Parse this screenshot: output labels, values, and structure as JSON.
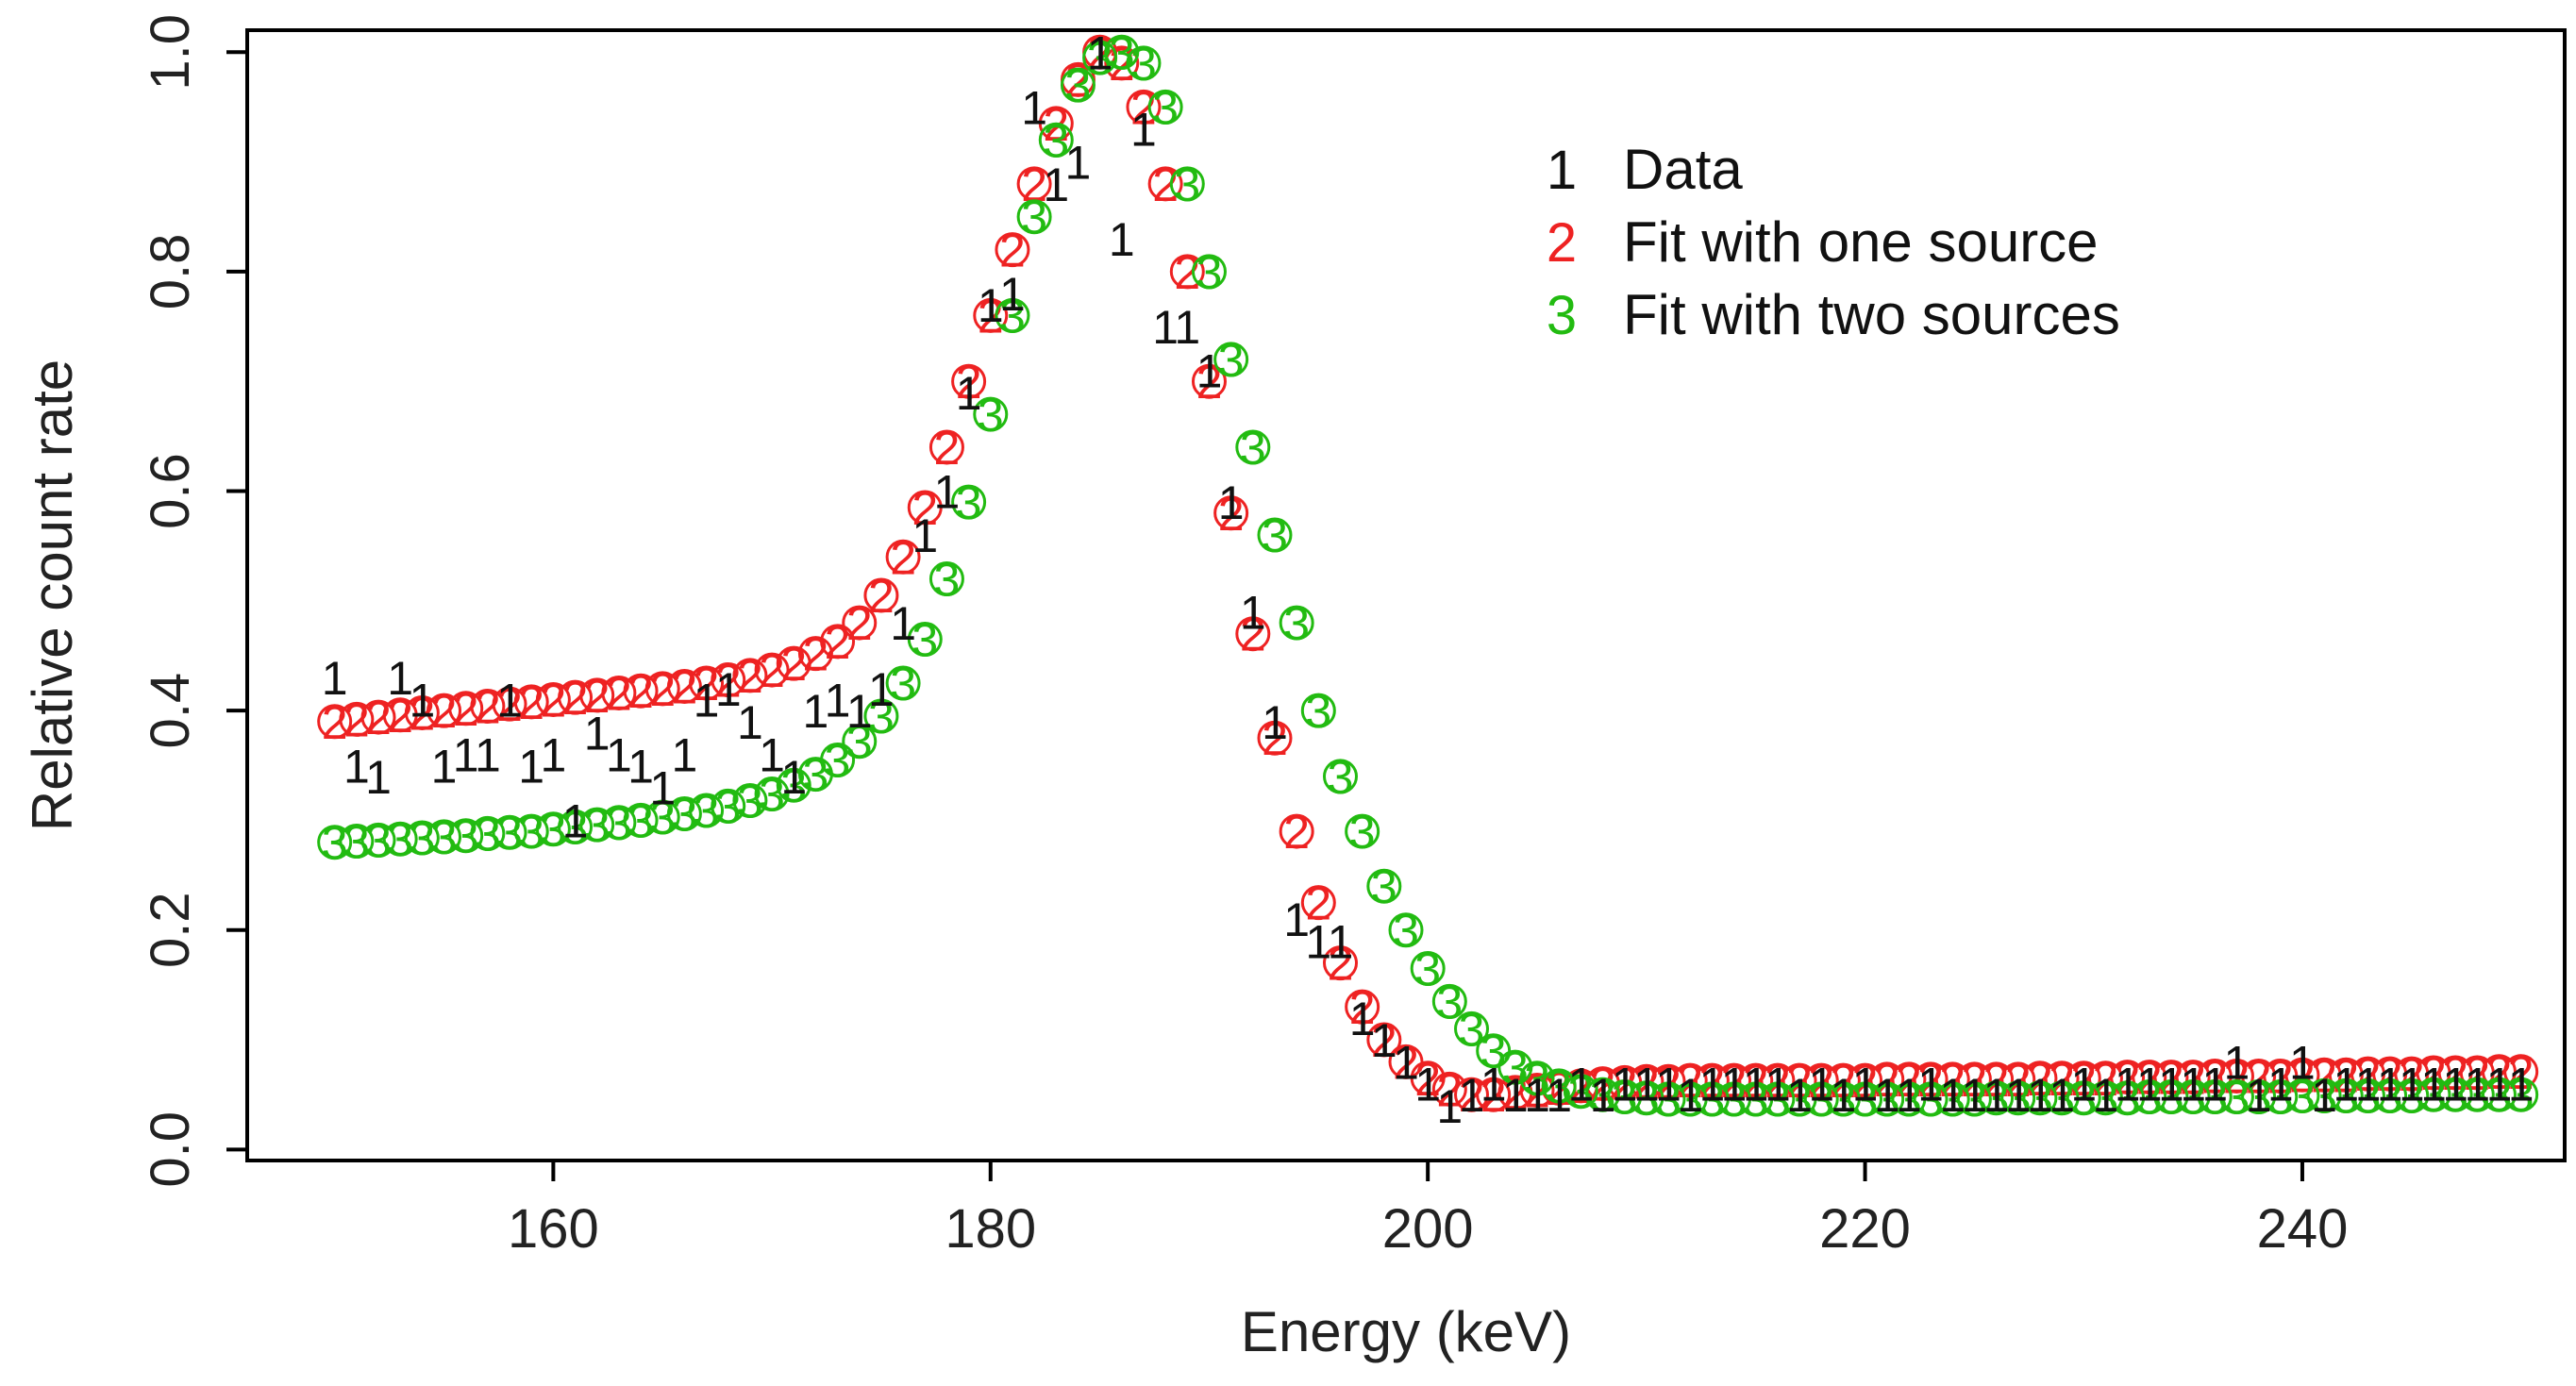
{
  "chart_data": {
    "type": "scatter",
    "title": "",
    "xlabel": "Energy (keV)",
    "ylabel": "Relative count rate",
    "xlim": [
      146,
      252
    ],
    "ylim": [
      -0.01,
      1.02
    ],
    "xticks": [
      "160",
      "180",
      "200",
      "220",
      "240"
    ],
    "yticks": [
      "0.0",
      "0.2",
      "0.4",
      "0.6",
      "0.8",
      "1.0"
    ],
    "grid": false,
    "legend_position": "top-right",
    "series": [
      {
        "name": "Data",
        "symbol": "1",
        "color": "#111111",
        "marker": "digit",
        "points": [
          [
            150.0,
            0.43
          ],
          [
            151.0,
            0.35
          ],
          [
            152.0,
            0.34
          ],
          [
            153.0,
            0.43
          ],
          [
            154.0,
            0.41
          ],
          [
            155.0,
            0.35
          ],
          [
            156.0,
            0.36
          ],
          [
            157.0,
            0.36
          ],
          [
            158.0,
            0.41
          ],
          [
            159.0,
            0.35
          ],
          [
            160.0,
            0.36
          ],
          [
            161.0,
            0.3
          ],
          [
            162.0,
            0.38
          ],
          [
            163.0,
            0.36
          ],
          [
            164.0,
            0.35
          ],
          [
            165.0,
            0.33
          ],
          [
            166.0,
            0.36
          ],
          [
            167.0,
            0.41
          ],
          [
            168.0,
            0.42
          ],
          [
            169.0,
            0.39
          ],
          [
            170.0,
            0.36
          ],
          [
            171.0,
            0.34
          ],
          [
            172.0,
            0.4
          ],
          [
            173.0,
            0.41
          ],
          [
            174.0,
            0.4
          ],
          [
            175.0,
            0.42
          ],
          [
            176.0,
            0.48
          ],
          [
            177.0,
            0.56
          ],
          [
            178.0,
            0.6
          ],
          [
            179.0,
            0.69
          ],
          [
            180.0,
            0.77
          ],
          [
            181.0,
            0.78
          ],
          [
            182.0,
            0.95
          ],
          [
            183.0,
            0.88
          ],
          [
            184.0,
            0.9
          ],
          [
            185.0,
            1.0
          ],
          [
            186.0,
            0.83
          ],
          [
            187.0,
            0.93
          ],
          [
            188.0,
            0.75
          ],
          [
            189.0,
            0.75
          ],
          [
            190.0,
            0.71
          ],
          [
            191.0,
            0.59
          ],
          [
            192.0,
            0.49
          ],
          [
            193.0,
            0.39
          ],
          [
            194.0,
            0.21
          ],
          [
            195.0,
            0.19
          ],
          [
            196.0,
            0.19
          ],
          [
            197.0,
            0.12
          ],
          [
            198.0,
            0.1
          ],
          [
            199.0,
            0.08
          ],
          [
            200.0,
            0.06
          ],
          [
            201.0,
            0.04
          ],
          [
            202.0,
            0.05
          ],
          [
            203.0,
            0.06
          ],
          [
            204.0,
            0.05
          ],
          [
            205.0,
            0.05
          ],
          [
            206.0,
            0.05
          ],
          [
            207.0,
            0.06
          ],
          [
            208.0,
            0.05
          ],
          [
            209.0,
            0.06
          ],
          [
            210.0,
            0.06
          ],
          [
            211.0,
            0.06
          ],
          [
            212.0,
            0.05
          ],
          [
            213.0,
            0.06
          ],
          [
            214.0,
            0.06
          ],
          [
            215.0,
            0.06
          ],
          [
            216.0,
            0.06
          ],
          [
            217.0,
            0.05
          ],
          [
            218.0,
            0.06
          ],
          [
            219.0,
            0.05
          ],
          [
            220.0,
            0.06
          ],
          [
            221.0,
            0.05
          ],
          [
            222.0,
            0.05
          ],
          [
            223.0,
            0.06
          ],
          [
            224.0,
            0.05
          ],
          [
            225.0,
            0.05
          ],
          [
            226.0,
            0.05
          ],
          [
            227.0,
            0.05
          ],
          [
            228.0,
            0.05
          ],
          [
            229.0,
            0.05
          ],
          [
            230.0,
            0.06
          ],
          [
            231.0,
            0.05
          ],
          [
            232.0,
            0.06
          ],
          [
            233.0,
            0.06
          ],
          [
            234.0,
            0.06
          ],
          [
            235.0,
            0.06
          ],
          [
            236.0,
            0.06
          ],
          [
            237.0,
            0.08
          ],
          [
            238.0,
            0.05
          ],
          [
            239.0,
            0.06
          ],
          [
            240.0,
            0.08
          ],
          [
            241.0,
            0.05
          ],
          [
            242.0,
            0.06
          ],
          [
            243.0,
            0.06
          ],
          [
            244.0,
            0.06
          ],
          [
            245.0,
            0.06
          ],
          [
            246.0,
            0.06
          ],
          [
            247.0,
            0.06
          ],
          [
            248.0,
            0.06
          ],
          [
            249.0,
            0.06
          ],
          [
            250.0,
            0.06
          ]
        ]
      },
      {
        "name": "Fit with one source",
        "symbol": "2",
        "color": "#ee2222",
        "marker": "circle+digit",
        "points": [
          [
            150,
            0.39
          ],
          [
            151,
            0.392
          ],
          [
            152,
            0.394
          ],
          [
            153,
            0.396
          ],
          [
            154,
            0.398
          ],
          [
            155,
            0.4
          ],
          [
            156,
            0.402
          ],
          [
            157,
            0.404
          ],
          [
            158,
            0.406
          ],
          [
            159,
            0.408
          ],
          [
            160,
            0.41
          ],
          [
            161,
            0.412
          ],
          [
            162,
            0.414
          ],
          [
            163,
            0.416
          ],
          [
            164,
            0.418
          ],
          [
            165,
            0.42
          ],
          [
            166,
            0.422
          ],
          [
            167,
            0.425
          ],
          [
            168,
            0.428
          ],
          [
            169,
            0.432
          ],
          [
            170,
            0.437
          ],
          [
            171,
            0.443
          ],
          [
            172,
            0.452
          ],
          [
            173,
            0.463
          ],
          [
            174,
            0.48
          ],
          [
            175,
            0.505
          ],
          [
            176,
            0.54
          ],
          [
            177,
            0.585
          ],
          [
            178,
            0.64
          ],
          [
            179,
            0.7
          ],
          [
            180,
            0.76
          ],
          [
            181,
            0.82
          ],
          [
            182,
            0.88
          ],
          [
            183,
            0.935
          ],
          [
            184,
            0.975
          ],
          [
            185,
            1.0
          ],
          [
            186,
            0.99
          ],
          [
            187,
            0.95
          ],
          [
            188,
            0.88
          ],
          [
            189,
            0.8
          ],
          [
            190,
            0.7
          ],
          [
            191,
            0.58
          ],
          [
            192,
            0.47
          ],
          [
            193,
            0.375
          ],
          [
            194,
            0.29
          ],
          [
            195,
            0.225
          ],
          [
            196,
            0.17
          ],
          [
            197,
            0.13
          ],
          [
            198,
            0.1
          ],
          [
            199,
            0.08
          ],
          [
            200,
            0.065
          ],
          [
            201,
            0.055
          ],
          [
            202,
            0.05
          ],
          [
            203,
            0.05
          ],
          [
            204,
            0.052
          ],
          [
            205,
            0.054
          ],
          [
            206,
            0.056
          ],
          [
            207,
            0.058
          ],
          [
            208,
            0.06
          ],
          [
            209,
            0.061
          ],
          [
            210,
            0.062
          ],
          [
            211,
            0.062
          ],
          [
            212,
            0.063
          ],
          [
            213,
            0.063
          ],
          [
            214,
            0.063
          ],
          [
            215,
            0.063
          ],
          [
            216,
            0.063
          ],
          [
            217,
            0.063
          ],
          [
            218,
            0.063
          ],
          [
            219,
            0.063
          ],
          [
            220,
            0.063
          ],
          [
            221,
            0.064
          ],
          [
            222,
            0.064
          ],
          [
            223,
            0.064
          ],
          [
            224,
            0.064
          ],
          [
            225,
            0.064
          ],
          [
            226,
            0.064
          ],
          [
            227,
            0.064
          ],
          [
            228,
            0.065
          ],
          [
            229,
            0.065
          ],
          [
            230,
            0.065
          ],
          [
            231,
            0.065
          ],
          [
            232,
            0.066
          ],
          [
            233,
            0.066
          ],
          [
            234,
            0.066
          ],
          [
            235,
            0.066
          ],
          [
            236,
            0.067
          ],
          [
            237,
            0.067
          ],
          [
            238,
            0.067
          ],
          [
            239,
            0.067
          ],
          [
            240,
            0.068
          ],
          [
            241,
            0.068
          ],
          [
            242,
            0.068
          ],
          [
            243,
            0.069
          ],
          [
            244,
            0.069
          ],
          [
            245,
            0.069
          ],
          [
            246,
            0.07
          ],
          [
            247,
            0.07
          ],
          [
            248,
            0.07
          ],
          [
            249,
            0.071
          ],
          [
            250,
            0.071
          ]
        ]
      },
      {
        "name": "Fit with two sources",
        "symbol": "3",
        "color": "#22bb11",
        "marker": "circle+digit",
        "points": [
          [
            150,
            0.28
          ],
          [
            151,
            0.281
          ],
          [
            152,
            0.282
          ],
          [
            153,
            0.283
          ],
          [
            154,
            0.284
          ],
          [
            155,
            0.285
          ],
          [
            156,
            0.286
          ],
          [
            157,
            0.288
          ],
          [
            158,
            0.289
          ],
          [
            159,
            0.29
          ],
          [
            160,
            0.292
          ],
          [
            161,
            0.294
          ],
          [
            162,
            0.296
          ],
          [
            163,
            0.298
          ],
          [
            164,
            0.3
          ],
          [
            165,
            0.303
          ],
          [
            166,
            0.306
          ],
          [
            167,
            0.309
          ],
          [
            168,
            0.313
          ],
          [
            169,
            0.318
          ],
          [
            170,
            0.324
          ],
          [
            171,
            0.332
          ],
          [
            172,
            0.342
          ],
          [
            173,
            0.355
          ],
          [
            174,
            0.372
          ],
          [
            175,
            0.395
          ],
          [
            176,
            0.425
          ],
          [
            177,
            0.465
          ],
          [
            178,
            0.52
          ],
          [
            179,
            0.59
          ],
          [
            180,
            0.67
          ],
          [
            181,
            0.76
          ],
          [
            182,
            0.85
          ],
          [
            183,
            0.92
          ],
          [
            184,
            0.97
          ],
          [
            185,
            0.995
          ],
          [
            186,
            1.0
          ],
          [
            187,
            0.99
          ],
          [
            188,
            0.95
          ],
          [
            189,
            0.88
          ],
          [
            190,
            0.8
          ],
          [
            191,
            0.72
          ],
          [
            192,
            0.64
          ],
          [
            193,
            0.56
          ],
          [
            194,
            0.48
          ],
          [
            195,
            0.4
          ],
          [
            196,
            0.34
          ],
          [
            197,
            0.29
          ],
          [
            198,
            0.24
          ],
          [
            199,
            0.2
          ],
          [
            200,
            0.165
          ],
          [
            201,
            0.135
          ],
          [
            202,
            0.11
          ],
          [
            203,
            0.09
          ],
          [
            204,
            0.075
          ],
          [
            205,
            0.065
          ],
          [
            206,
            0.058
          ],
          [
            207,
            0.053
          ],
          [
            208,
            0.05
          ],
          [
            209,
            0.048
          ],
          [
            210,
            0.047
          ],
          [
            211,
            0.046
          ],
          [
            212,
            0.046
          ],
          [
            213,
            0.046
          ],
          [
            214,
            0.046
          ],
          [
            215,
            0.046
          ],
          [
            216,
            0.046
          ],
          [
            217,
            0.046
          ],
          [
            218,
            0.046
          ],
          [
            219,
            0.046
          ],
          [
            220,
            0.046
          ],
          [
            221,
            0.046
          ],
          [
            222,
            0.046
          ],
          [
            223,
            0.046
          ],
          [
            224,
            0.046
          ],
          [
            225,
            0.046
          ],
          [
            226,
            0.047
          ],
          [
            227,
            0.047
          ],
          [
            228,
            0.047
          ],
          [
            229,
            0.047
          ],
          [
            230,
            0.047
          ],
          [
            231,
            0.047
          ],
          [
            232,
            0.047
          ],
          [
            233,
            0.048
          ],
          [
            234,
            0.048
          ],
          [
            235,
            0.048
          ],
          [
            236,
            0.048
          ],
          [
            237,
            0.048
          ],
          [
            238,
            0.048
          ],
          [
            239,
            0.048
          ],
          [
            240,
            0.049
          ],
          [
            241,
            0.049
          ],
          [
            242,
            0.049
          ],
          [
            243,
            0.049
          ],
          [
            244,
            0.049
          ],
          [
            245,
            0.049
          ],
          [
            246,
            0.05
          ],
          [
            247,
            0.05
          ],
          [
            248,
            0.05
          ],
          [
            249,
            0.05
          ],
          [
            250,
            0.05
          ]
        ]
      }
    ]
  }
}
